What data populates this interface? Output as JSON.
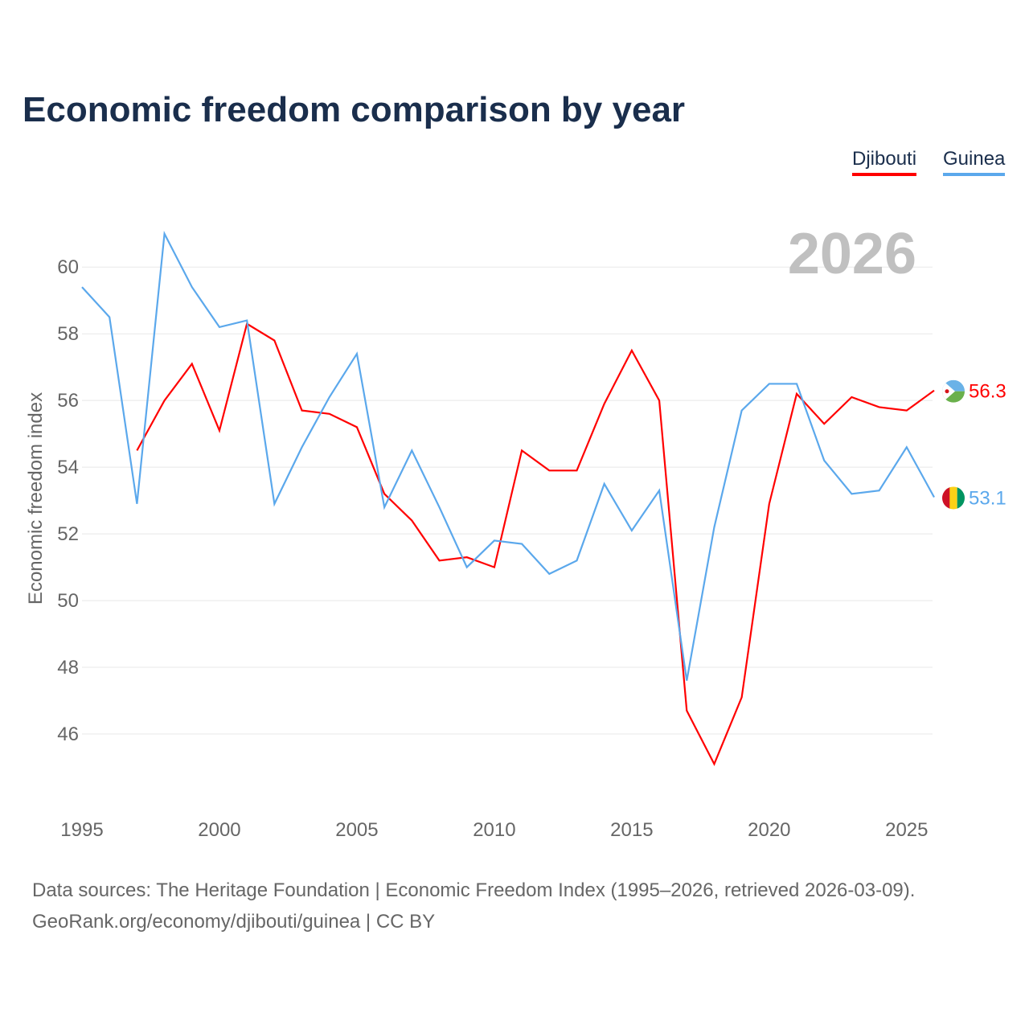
{
  "title": "Economic freedom comparison by year",
  "year_watermark": "2026",
  "source_line1": "Data sources: The Heritage Foundation | Economic Freedom Index (1995–2026, retrieved 2026-03-09).",
  "source_line2": "GeoRank.org/economy/djibouti/guinea | CC BY",
  "chart_data": {
    "type": "line",
    "title": "Economic freedom comparison by year",
    "xlabel": "",
    "ylabel": "Economic freedom index",
    "xlim": [
      1995,
      2026
    ],
    "ylim": [
      44,
      61.5
    ],
    "x_ticks": [
      1995,
      2000,
      2005,
      2010,
      2015,
      2020,
      2025
    ],
    "y_ticks": [
      46,
      48,
      50,
      52,
      54,
      56,
      58,
      60
    ],
    "grid": true,
    "legend": "top-right",
    "series": [
      {
        "name": "Djibouti",
        "color": "#ff0000",
        "end_label": "56.3",
        "x": [
          1997,
          1998,
          1999,
          2000,
          2001,
          2002,
          2003,
          2004,
          2005,
          2006,
          2007,
          2008,
          2009,
          2010,
          2011,
          2012,
          2013,
          2014,
          2015,
          2016,
          2017,
          2018,
          2019,
          2020,
          2021,
          2022,
          2023,
          2024,
          2025,
          2026
        ],
        "values": [
          54.5,
          56.0,
          57.1,
          55.1,
          58.3,
          57.8,
          55.7,
          55.6,
          55.2,
          53.2,
          52.4,
          51.2,
          51.3,
          51.0,
          54.5,
          53.9,
          53.9,
          55.9,
          57.5,
          56.0,
          46.7,
          45.1,
          47.1,
          52.9,
          56.2,
          55.3,
          56.1,
          55.8,
          55.7,
          56.3
        ]
      },
      {
        "name": "Guinea",
        "color": "#5ba8ec",
        "end_label": "53.1",
        "x": [
          1995,
          1996,
          1997,
          1998,
          1999,
          2000,
          2001,
          2002,
          2003,
          2004,
          2005,
          2006,
          2007,
          2008,
          2009,
          2010,
          2011,
          2012,
          2013,
          2014,
          2015,
          2016,
          2017,
          2018,
          2019,
          2020,
          2021,
          2022,
          2023,
          2024,
          2025,
          2026
        ],
        "values": [
          59.4,
          58.5,
          52.9,
          61.0,
          59.4,
          58.2,
          58.4,
          52.9,
          54.6,
          56.1,
          57.4,
          52.8,
          54.5,
          52.8,
          51.0,
          51.8,
          51.7,
          50.8,
          51.2,
          53.5,
          52.1,
          53.3,
          47.6,
          52.2,
          55.7,
          56.5,
          56.5,
          54.2,
          53.2,
          53.3,
          54.6,
          53.1
        ]
      }
    ]
  }
}
